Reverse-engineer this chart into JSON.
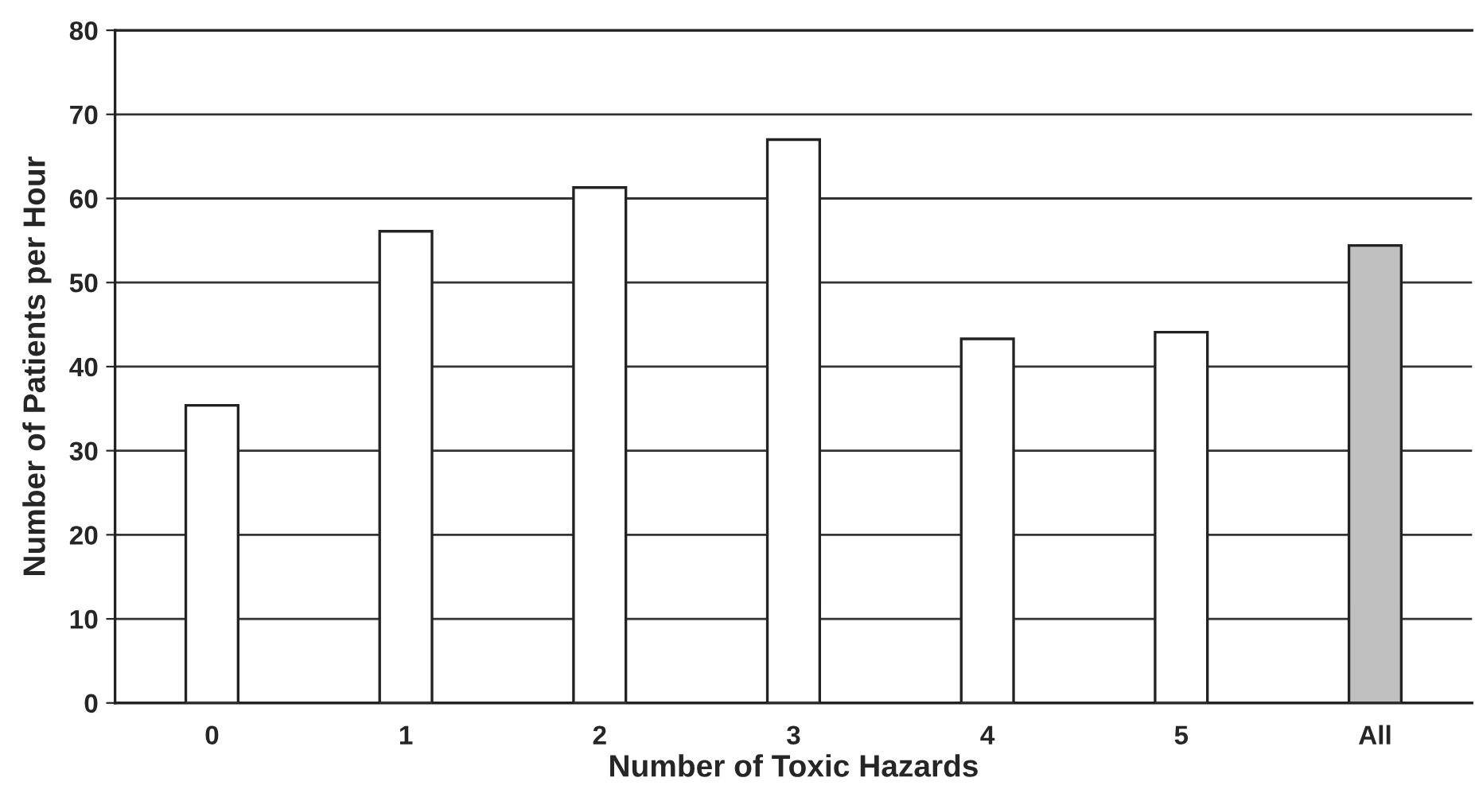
{
  "chart_data": {
    "type": "bar",
    "xlabel": "Number of Toxic Hazards",
    "ylabel": "Number of Patients per Hour",
    "categories": [
      "0",
      "1",
      "2",
      "3",
      "4",
      "5",
      "All"
    ],
    "values": [
      35.4,
      56.1,
      61.3,
      67.0,
      43.3,
      44.1,
      54.4
    ],
    "colors": [
      "#ffffff",
      "#ffffff",
      "#ffffff",
      "#ffffff",
      "#ffffff",
      "#ffffff",
      "#c0c0c0"
    ],
    "ylim": [
      0,
      80
    ],
    "yticks": [
      0,
      10,
      20,
      30,
      40,
      50,
      60,
      70,
      80
    ],
    "grid": "y"
  }
}
